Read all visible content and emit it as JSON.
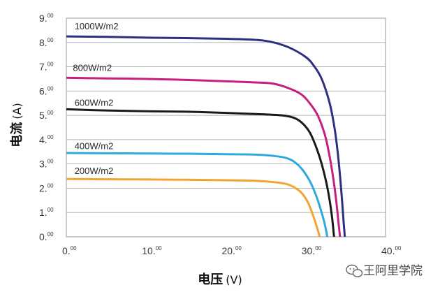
{
  "chart_data": {
    "type": "line",
    "xlabel": "电压",
    "xunit": "(V)",
    "ylabel": "电流",
    "yunit": "(A)",
    "xlim": [
      0,
      40
    ],
    "ylim": [
      0,
      9
    ],
    "grid": {
      "horizontal": true,
      "vertical": false
    },
    "x_ticks": [
      {
        "main": "0.",
        "sup": "00",
        "value": 0
      },
      {
        "main": "10.",
        "sup": "00",
        "value": 10
      },
      {
        "main": "20.",
        "sup": "00",
        "value": 20
      },
      {
        "main": "30.",
        "sup": "00",
        "value": 30
      },
      {
        "main": "40.",
        "sup": "00",
        "value": 40
      }
    ],
    "y_ticks": [
      {
        "main": "0.",
        "sup": "00",
        "value": 0
      },
      {
        "main": "1.",
        "sup": "00",
        "value": 1
      },
      {
        "main": "2.",
        "sup": "00",
        "value": 2
      },
      {
        "main": "3.",
        "sup": "00",
        "value": 3
      },
      {
        "main": "4.",
        "sup": "00",
        "value": 4
      },
      {
        "main": "5.",
        "sup": "00",
        "value": 5
      },
      {
        "main": "6.",
        "sup": "00",
        "value": 6
      },
      {
        "main": "7.",
        "sup": "00",
        "value": 7
      },
      {
        "main": "8.",
        "sup": "00",
        "value": 8
      },
      {
        "main": "9.",
        "sup": "00",
        "value": 9
      }
    ],
    "series": [
      {
        "name": "1000W/m2",
        "color": "#2e2f7f",
        "label_at": {
          "x": 0.5,
          "y": 8.65
        },
        "points": [
          [
            0,
            8.25
          ],
          [
            5,
            8.23
          ],
          [
            10,
            8.2
          ],
          [
            15,
            8.18
          ],
          [
            20,
            8.15
          ],
          [
            24,
            8.1
          ],
          [
            26,
            8.0
          ],
          [
            28,
            7.78
          ],
          [
            30,
            7.4
          ],
          [
            31,
            7.05
          ],
          [
            32,
            6.5
          ],
          [
            33,
            5.5
          ],
          [
            33.6,
            4.5
          ],
          [
            34.0,
            3.5
          ],
          [
            34.3,
            2.5
          ],
          [
            34.55,
            1.5
          ],
          [
            34.75,
            0.6
          ],
          [
            34.9,
            0
          ]
        ]
      },
      {
        "name": "800W/m2",
        "color": "#c51f7f",
        "label_at": {
          "x": 0.3,
          "y": 6.95
        },
        "points": [
          [
            0,
            6.55
          ],
          [
            5,
            6.52
          ],
          [
            10,
            6.5
          ],
          [
            15,
            6.46
          ],
          [
            20,
            6.4
          ],
          [
            24,
            6.35
          ],
          [
            26,
            6.3
          ],
          [
            28,
            6.1
          ],
          [
            29.5,
            5.85
          ],
          [
            30.5,
            5.5
          ],
          [
            31.5,
            5.0
          ],
          [
            32.4,
            4.2
          ],
          [
            33.0,
            3.3
          ],
          [
            33.5,
            2.3
          ],
          [
            33.85,
            1.4
          ],
          [
            34.1,
            0.6
          ],
          [
            34.3,
            0
          ]
        ]
      },
      {
        "name": "600W/m2",
        "color": "#1a1a1a",
        "label_at": {
          "x": 0.5,
          "y": 5.5
        },
        "points": [
          [
            0,
            5.25
          ],
          [
            5,
            5.2
          ],
          [
            10,
            5.17
          ],
          [
            15,
            5.15
          ],
          [
            20,
            5.1
          ],
          [
            24,
            5.05
          ],
          [
            27,
            5.0
          ],
          [
            28.5,
            4.9
          ],
          [
            29.5,
            4.7
          ],
          [
            30.5,
            4.3
          ],
          [
            31.3,
            3.7
          ],
          [
            32.0,
            3.0
          ],
          [
            32.6,
            2.2
          ],
          [
            33.0,
            1.5
          ],
          [
            33.3,
            0.8
          ],
          [
            33.55,
            0
          ]
        ]
      },
      {
        "name": "400W/m2",
        "color": "#2fa9db",
        "label_at": {
          "x": 0.5,
          "y": 3.72
        },
        "points": [
          [
            0,
            3.45
          ],
          [
            5,
            3.44
          ],
          [
            10,
            3.43
          ],
          [
            15,
            3.42
          ],
          [
            20,
            3.4
          ],
          [
            24,
            3.38
          ],
          [
            26,
            3.33
          ],
          [
            27.5,
            3.25
          ],
          [
            28.5,
            3.1
          ],
          [
            29.5,
            2.8
          ],
          [
            30.5,
            2.3
          ],
          [
            31.3,
            1.7
          ],
          [
            31.9,
            1.1
          ],
          [
            32.4,
            0.5
          ],
          [
            32.7,
            0
          ]
        ]
      },
      {
        "name": "200W/m2",
        "color": "#f2a431",
        "label_at": {
          "x": 0.5,
          "y": 2.7
        },
        "points": [
          [
            0,
            2.38
          ],
          [
            5,
            2.37
          ],
          [
            10,
            2.36
          ],
          [
            15,
            2.35
          ],
          [
            20,
            2.33
          ],
          [
            24,
            2.3
          ],
          [
            26,
            2.25
          ],
          [
            27.5,
            2.18
          ],
          [
            28.5,
            2.05
          ],
          [
            29.5,
            1.8
          ],
          [
            30.3,
            1.4
          ],
          [
            30.9,
            0.9
          ],
          [
            31.4,
            0.4
          ],
          [
            31.75,
            0
          ]
        ]
      }
    ]
  },
  "watermark": {
    "text": "王阿里学院",
    "icon": "wechat-icon"
  }
}
